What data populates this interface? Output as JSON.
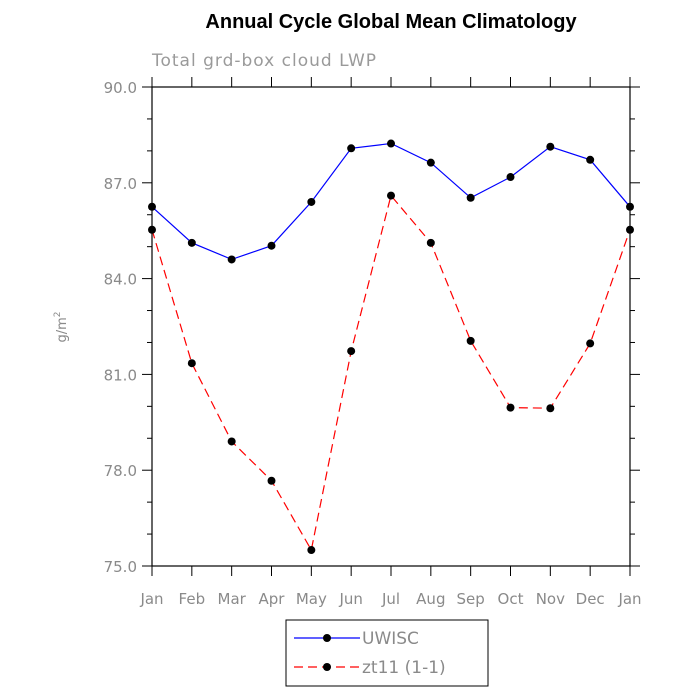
{
  "chart_data": {
    "type": "line",
    "title": "Annual Cycle Global Mean Climatology",
    "subtitle": "Total grd-box cloud LWP",
    "xlabel": "",
    "ylabel": "g/m",
    "ylabel_sup": "2",
    "ylim": [
      75.0,
      90.0
    ],
    "yticks": [
      75.0,
      78.0,
      81.0,
      84.0,
      87.0,
      90.0
    ],
    "ytick_labels": [
      "75.0",
      "78.0",
      "81.0",
      "84.0",
      "87.0",
      "90.0"
    ],
    "categories": [
      "Jan",
      "Feb",
      "Mar",
      "Apr",
      "May",
      "Jun",
      "Jul",
      "Aug",
      "Sep",
      "Oct",
      "Nov",
      "Dec",
      "Jan"
    ],
    "series": [
      {
        "name": "UWISC",
        "color": "#0000ff",
        "style": "solid",
        "values": [
          86.25,
          85.12,
          84.6,
          85.03,
          86.4,
          88.08,
          88.23,
          87.63,
          86.53,
          87.18,
          88.13,
          87.72,
          86.25
        ]
      },
      {
        "name": "zt11 (1-1)",
        "color": "#ff0000",
        "style": "dashed",
        "values": [
          85.53,
          81.35,
          78.9,
          77.67,
          75.5,
          81.73,
          86.6,
          85.12,
          82.05,
          79.96,
          79.94,
          81.97,
          85.53
        ]
      }
    ],
    "legend_position": "bottom-center"
  }
}
